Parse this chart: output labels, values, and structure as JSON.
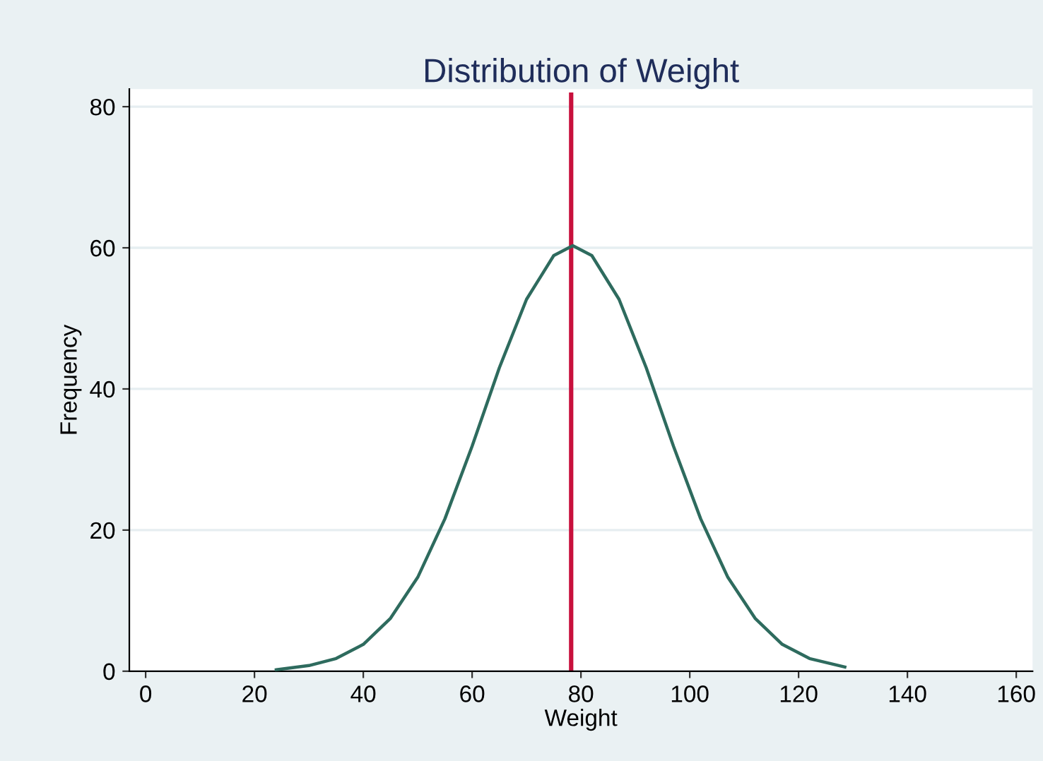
{
  "chart_data": {
    "type": "histogram",
    "title": "Distribution of Weight",
    "xlabel": "Weight",
    "ylabel": "Frequency",
    "series": [
      {
        "color": "#c8103c",
        "bins": [
          77.8,
          78.6
        ],
        "values": [
          82
        ]
      },
      {
        "type": "line",
        "color": "#2e6b5e",
        "x": [
          24,
          30,
          35,
          40,
          45,
          50,
          55,
          60,
          65,
          70,
          75,
          78.5,
          82,
          87,
          92,
          97,
          102,
          107,
          112,
          117,
          122,
          128.5
        ],
        "values": [
          0.2,
          0.8,
          1.8,
          3.8,
          7.5,
          13.3,
          21.6,
          31.9,
          43.0,
          52.7,
          58.9,
          60.3,
          58.9,
          52.7,
          43.0,
          31.9,
          21.6,
          13.3,
          7.5,
          3.8,
          1.8,
          0.6
        ]
      }
    ],
    "xlim": [
      -3,
      163
    ],
    "ylim": [
      0,
      82.5
    ],
    "xticks": [
      0,
      20,
      40,
      60,
      80,
      100,
      120,
      140,
      160
    ],
    "yticks": [
      0,
      20,
      40,
      60,
      80
    ],
    "grid": "y"
  }
}
